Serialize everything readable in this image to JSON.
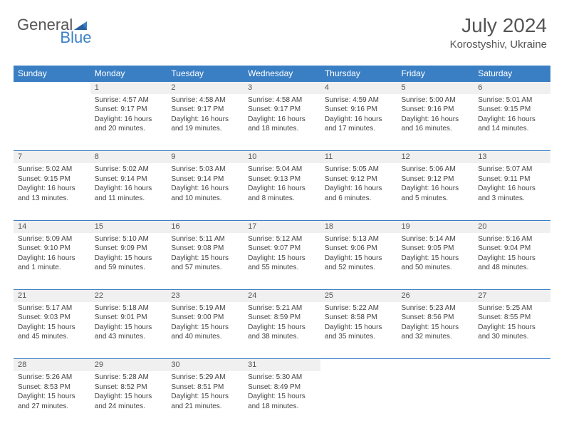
{
  "logo": {
    "text1": "General",
    "text2": "Blue"
  },
  "title": "July 2024",
  "location": "Korostyshiv, Ukraine",
  "colors": {
    "header_bg": "#3a7fc4",
    "header_text": "#ffffff",
    "daynum_bg": "#f0f0f0",
    "border": "#3a7fc4",
    "body_text": "#444444",
    "title_text": "#555555"
  },
  "weekdays": [
    "Sunday",
    "Monday",
    "Tuesday",
    "Wednesday",
    "Thursday",
    "Friday",
    "Saturday"
  ],
  "weeks": [
    [
      null,
      {
        "n": "1",
        "sr": "4:57 AM",
        "ss": "9:17 PM",
        "dl": "16 hours and 20 minutes."
      },
      {
        "n": "2",
        "sr": "4:58 AM",
        "ss": "9:17 PM",
        "dl": "16 hours and 19 minutes."
      },
      {
        "n": "3",
        "sr": "4:58 AM",
        "ss": "9:17 PM",
        "dl": "16 hours and 18 minutes."
      },
      {
        "n": "4",
        "sr": "4:59 AM",
        "ss": "9:16 PM",
        "dl": "16 hours and 17 minutes."
      },
      {
        "n": "5",
        "sr": "5:00 AM",
        "ss": "9:16 PM",
        "dl": "16 hours and 16 minutes."
      },
      {
        "n": "6",
        "sr": "5:01 AM",
        "ss": "9:15 PM",
        "dl": "16 hours and 14 minutes."
      }
    ],
    [
      {
        "n": "7",
        "sr": "5:02 AM",
        "ss": "9:15 PM",
        "dl": "16 hours and 13 minutes."
      },
      {
        "n": "8",
        "sr": "5:02 AM",
        "ss": "9:14 PM",
        "dl": "16 hours and 11 minutes."
      },
      {
        "n": "9",
        "sr": "5:03 AM",
        "ss": "9:14 PM",
        "dl": "16 hours and 10 minutes."
      },
      {
        "n": "10",
        "sr": "5:04 AM",
        "ss": "9:13 PM",
        "dl": "16 hours and 8 minutes."
      },
      {
        "n": "11",
        "sr": "5:05 AM",
        "ss": "9:12 PM",
        "dl": "16 hours and 6 minutes."
      },
      {
        "n": "12",
        "sr": "5:06 AM",
        "ss": "9:12 PM",
        "dl": "16 hours and 5 minutes."
      },
      {
        "n": "13",
        "sr": "5:07 AM",
        "ss": "9:11 PM",
        "dl": "16 hours and 3 minutes."
      }
    ],
    [
      {
        "n": "14",
        "sr": "5:09 AM",
        "ss": "9:10 PM",
        "dl": "16 hours and 1 minute."
      },
      {
        "n": "15",
        "sr": "5:10 AM",
        "ss": "9:09 PM",
        "dl": "15 hours and 59 minutes."
      },
      {
        "n": "16",
        "sr": "5:11 AM",
        "ss": "9:08 PM",
        "dl": "15 hours and 57 minutes."
      },
      {
        "n": "17",
        "sr": "5:12 AM",
        "ss": "9:07 PM",
        "dl": "15 hours and 55 minutes."
      },
      {
        "n": "18",
        "sr": "5:13 AM",
        "ss": "9:06 PM",
        "dl": "15 hours and 52 minutes."
      },
      {
        "n": "19",
        "sr": "5:14 AM",
        "ss": "9:05 PM",
        "dl": "15 hours and 50 minutes."
      },
      {
        "n": "20",
        "sr": "5:16 AM",
        "ss": "9:04 PM",
        "dl": "15 hours and 48 minutes."
      }
    ],
    [
      {
        "n": "21",
        "sr": "5:17 AM",
        "ss": "9:03 PM",
        "dl": "15 hours and 45 minutes."
      },
      {
        "n": "22",
        "sr": "5:18 AM",
        "ss": "9:01 PM",
        "dl": "15 hours and 43 minutes."
      },
      {
        "n": "23",
        "sr": "5:19 AM",
        "ss": "9:00 PM",
        "dl": "15 hours and 40 minutes."
      },
      {
        "n": "24",
        "sr": "5:21 AM",
        "ss": "8:59 PM",
        "dl": "15 hours and 38 minutes."
      },
      {
        "n": "25",
        "sr": "5:22 AM",
        "ss": "8:58 PM",
        "dl": "15 hours and 35 minutes."
      },
      {
        "n": "26",
        "sr": "5:23 AM",
        "ss": "8:56 PM",
        "dl": "15 hours and 32 minutes."
      },
      {
        "n": "27",
        "sr": "5:25 AM",
        "ss": "8:55 PM",
        "dl": "15 hours and 30 minutes."
      }
    ],
    [
      {
        "n": "28",
        "sr": "5:26 AM",
        "ss": "8:53 PM",
        "dl": "15 hours and 27 minutes."
      },
      {
        "n": "29",
        "sr": "5:28 AM",
        "ss": "8:52 PM",
        "dl": "15 hours and 24 minutes."
      },
      {
        "n": "30",
        "sr": "5:29 AM",
        "ss": "8:51 PM",
        "dl": "15 hours and 21 minutes."
      },
      {
        "n": "31",
        "sr": "5:30 AM",
        "ss": "8:49 PM",
        "dl": "15 hours and 18 minutes."
      },
      null,
      null,
      null
    ]
  ],
  "labels": {
    "sunrise": "Sunrise:",
    "sunset": "Sunset:",
    "daylight": "Daylight:"
  }
}
